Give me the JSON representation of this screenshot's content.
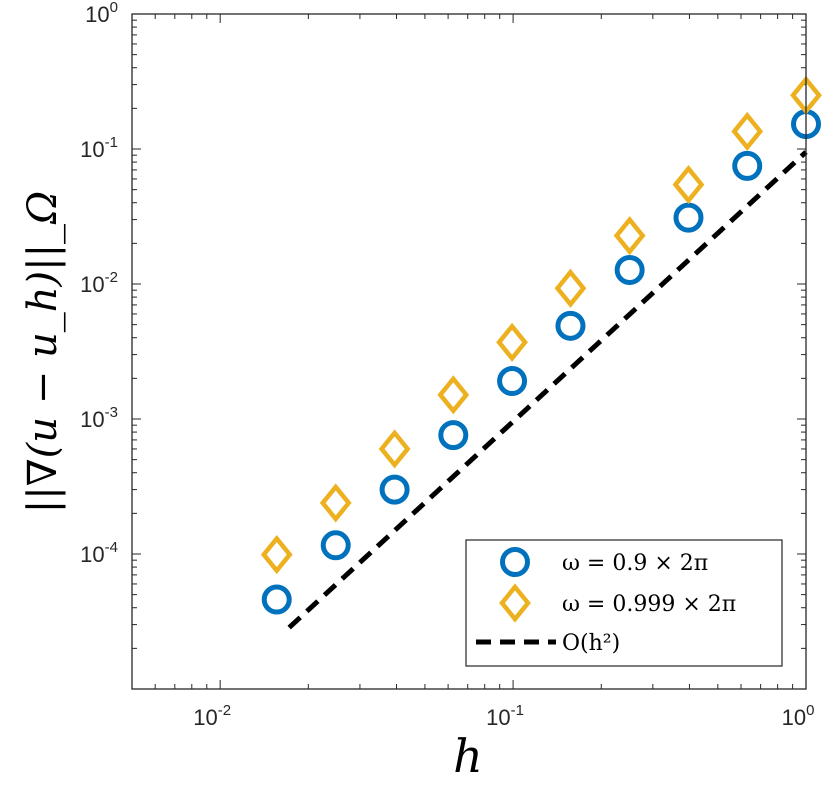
{
  "chart_data": {
    "type": "scatter",
    "xscale": "log",
    "yscale": "log",
    "xlim": [
      0.005,
      1
    ],
    "ylim": [
      1e-05,
      1
    ],
    "xlabel": "h",
    "ylabel": "||∇(u − u_h)||_Ω",
    "xticks": [
      {
        "base": "10",
        "exp": "-2",
        "value": 0.01
      },
      {
        "base": "10",
        "exp": "-1",
        "value": 0.1
      },
      {
        "base": "10",
        "exp": "0",
        "value": 1
      }
    ],
    "yticks": [
      {
        "base": "10",
        "exp": "-4",
        "value": 0.0001
      },
      {
        "base": "10",
        "exp": "-3",
        "value": 0.001
      },
      {
        "base": "10",
        "exp": "-2",
        "value": 0.01
      },
      {
        "base": "10",
        "exp": "-1",
        "value": 0.1
      },
      {
        "base": "10",
        "exp": "0",
        "value": 1
      }
    ],
    "legend_position": "bottom-right",
    "series": [
      {
        "name": "ω = 0.9 × 2π",
        "marker": "circle",
        "color": "#0072BD",
        "x": [
          0.0156,
          0.0248,
          0.0394,
          0.0625,
          0.0992,
          0.157,
          0.25,
          0.397,
          0.63,
          1.0
        ],
        "y": [
          4.6e-05,
          0.000116,
          0.0003,
          0.00076,
          0.00191,
          0.0049,
          0.0127,
          0.031,
          0.075,
          0.153
        ]
      },
      {
        "name": "ω = 0.999 × 2π",
        "marker": "diamond",
        "color": "#EDB120",
        "x": [
          0.0156,
          0.0248,
          0.0394,
          0.0625,
          0.0992,
          0.157,
          0.25,
          0.397,
          0.63,
          1.0
        ],
        "y": [
          9.9e-05,
          0.000239,
          0.0006,
          0.00151,
          0.0037,
          0.0093,
          0.0228,
          0.0545,
          0.135,
          0.25
        ]
      },
      {
        "name": "O(h²)",
        "marker": "dashed-line",
        "color": "#000000",
        "x": [
          0.0172,
          1.0
        ],
        "y": [
          2.85e-05,
          0.095
        ]
      }
    ]
  }
}
